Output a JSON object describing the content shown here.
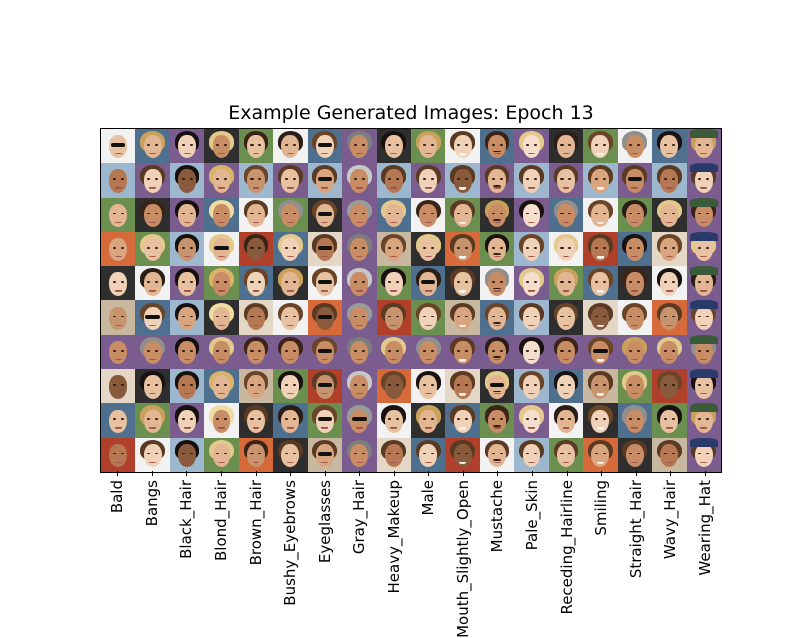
{
  "chart_data": {
    "type": "image-grid",
    "title": "Example Generated Images: Epoch 13",
    "rows": 10,
    "columns": 18,
    "x_tick_labels": [
      "Bald",
      "Bangs",
      "Black_Hair",
      "Blond_Hair",
      "Brown_Hair",
      "Bushy_Eyebrows",
      "Eyeglasses",
      "Gray_Hair",
      "Heavy_Makeup",
      "Male",
      "Mouth_Slightly_Open",
      "Mustache",
      "Pale_Skin",
      "Receding_Hairline",
      "Smiling",
      "Straight_Hair",
      "Wavy_Hair",
      "Wearing_Hat"
    ],
    "grid": false,
    "legend": "none"
  },
  "palette": {
    "skin": [
      "#e8c2a0",
      "#d9a57f",
      "#c98d66",
      "#b57852",
      "#f0d2b8",
      "#8a5a3c",
      "#e2b593",
      "#c7946e"
    ],
    "hair": [
      "#1a1210",
      "#3b2417",
      "#6a4427",
      "#c9a15a",
      "#e3c98b",
      "#8f8f8f",
      "#5a3a22",
      "#2b1e16"
    ],
    "background": [
      "#f2f2f2",
      "#9db7cf",
      "#6b8f4e",
      "#d66a3a",
      "#2e2e2e",
      "#c9b8a0",
      "#7a5c8e",
      "#e4d7c5",
      "#4f6f8f",
      "#b0402a"
    ]
  }
}
